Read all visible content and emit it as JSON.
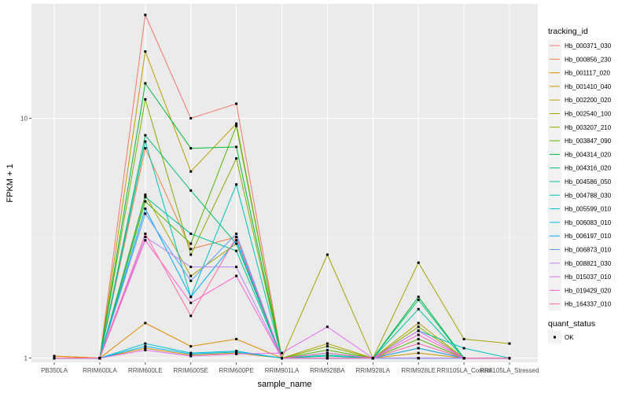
{
  "chart_data": {
    "type": "line",
    "title": "",
    "xlabel": "sample_name",
    "ylabel": "FPKM + 1",
    "y_scale": "log10",
    "ylim": [
      0.96,
      30
    ],
    "y_ticks": [
      1,
      10
    ],
    "y_tick_labels": [
      "1",
      "10"
    ],
    "grid": true,
    "legend_position": "right",
    "categories": [
      "PB350LA",
      "RRIM600LA",
      "RRIM600LE",
      "RRIM600SE",
      "RRIM600PE",
      "RRIM901LA",
      "RRIM928BA",
      "RRIM928LA",
      "RRIM928LE",
      "RRII105LA_Control",
      "RRII105LA_Stressed"
    ],
    "series": [
      {
        "name": "Hb_000371_030",
        "color": "#F8766D",
        "values": [
          1.02,
          1.0,
          27.0,
          10.0,
          11.5,
          1.0,
          1.0,
          1.0,
          1.0,
          1.0,
          1.0
        ]
      },
      {
        "name": "Hb_000856_230",
        "color": "#EE8043",
        "values": [
          1.02,
          1.0,
          7.5,
          2.85,
          3.2,
          1.0,
          1.0,
          1.0,
          1.0,
          1.0,
          1.0
        ]
      },
      {
        "name": "Hb_001117_020",
        "color": "#E18A00",
        "values": [
          1.02,
          1.0,
          1.4,
          1.12,
          1.2,
          1.0,
          1.0,
          1.0,
          1.1,
          1.0,
          1.0
        ]
      },
      {
        "name": "Hb_001410_040",
        "color": "#CF9400",
        "values": [
          1.0,
          1.0,
          1.1,
          1.03,
          1.05,
          1.0,
          1.0,
          1.0,
          1.05,
          1.0,
          1.0
        ]
      },
      {
        "name": "Hb_002200_020",
        "color": "#BA9E00",
        "values": [
          1.0,
          1.0,
          19.0,
          6.0,
          9.5,
          1.0,
          1.15,
          1.0,
          1.4,
          1.0,
          1.0
        ]
      },
      {
        "name": "Hb_002540_100",
        "color": "#A3A500",
        "values": [
          1.0,
          1.0,
          4.8,
          2.2,
          3.0,
          1.0,
          2.7,
          1.0,
          2.5,
          1.2,
          1.15
        ]
      },
      {
        "name": "Hb_003207_210",
        "color": "#83AD00",
        "values": [
          1.0,
          1.0,
          12.0,
          2.7,
          6.8,
          1.0,
          1.12,
          1.0,
          1.35,
          1.0,
          1.0
        ]
      },
      {
        "name": "Hb_003847_090",
        "color": "#52B500",
        "values": [
          1.0,
          1.0,
          4.5,
          3.0,
          9.3,
          1.0,
          1.08,
          1.0,
          1.2,
          1.0,
          1.0
        ]
      },
      {
        "name": "Hb_004314_020",
        "color": "#00BA38",
        "values": [
          1.0,
          1.0,
          14.0,
          7.5,
          7.6,
          1.0,
          1.05,
          1.0,
          1.8,
          1.0,
          1.0
        ]
      },
      {
        "name": "Hb_004316_020",
        "color": "#00BE70",
        "values": [
          1.0,
          1.0,
          8.5,
          5.0,
          3.0,
          1.0,
          1.05,
          1.0,
          1.75,
          1.0,
          1.0
        ]
      },
      {
        "name": "Hb_004586_050",
        "color": "#00C097",
        "values": [
          1.0,
          1.0,
          4.7,
          3.3,
          2.8,
          1.0,
          1.03,
          1.0,
          1.6,
          1.0,
          1.0
        ]
      },
      {
        "name": "Hb_004788_030",
        "color": "#00C1B9",
        "values": [
          1.0,
          1.0,
          8.0,
          1.8,
          5.3,
          1.0,
          1.02,
          1.0,
          1.3,
          1.1,
          1.0
        ]
      },
      {
        "name": "Hb_005599_010",
        "color": "#00BFD6",
        "values": [
          1.0,
          1.0,
          1.15,
          1.05,
          1.07,
          1.0,
          1.0,
          1.0,
          1.0,
          1.0,
          1.0
        ]
      },
      {
        "name": "Hb_006083_010",
        "color": "#00B9EF",
        "values": [
          1.0,
          1.0,
          1.12,
          1.04,
          1.06,
          1.0,
          1.0,
          1.0,
          1.0,
          1.0,
          1.0
        ]
      },
      {
        "name": "Hb_006197_010",
        "color": "#00A9FF",
        "values": [
          1.0,
          1.0,
          4.2,
          1.8,
          3.1,
          1.0,
          1.0,
          1.0,
          1.1,
          1.0,
          1.0
        ]
      },
      {
        "name": "Hb_006873_010",
        "color": "#619CFF",
        "values": [
          1.0,
          1.0,
          4.0,
          2.1,
          3.3,
          1.0,
          1.0,
          1.0,
          1.0,
          1.0,
          1.0
        ]
      },
      {
        "name": "Hb_008821_030",
        "color": "#B983FF",
        "values": [
          1.0,
          1.0,
          3.2,
          2.4,
          2.4,
          1.0,
          1.0,
          1.0,
          1.0,
          1.0,
          1.0
        ]
      },
      {
        "name": "Hb_015037_010",
        "color": "#E76BF3",
        "values": [
          1.0,
          1.0,
          1.08,
          1.02,
          1.04,
          1.05,
          1.35,
          1.0,
          1.3,
          1.0,
          1.0
        ]
      },
      {
        "name": "Hb_019429_020",
        "color": "#FD61D1",
        "values": [
          1.0,
          1.0,
          3.1,
          1.7,
          2.2,
          1.0,
          1.05,
          1.0,
          1.25,
          1.0,
          1.0
        ]
      },
      {
        "name": "Hb_164337_010",
        "color": "#FF67A4",
        "values": [
          1.0,
          1.0,
          3.3,
          1.5,
          3.2,
          1.0,
          1.0,
          1.0,
          1.15,
          1.0,
          1.0
        ]
      }
    ],
    "legend_title": "tracking_id",
    "shape_legend_title": "quant_status",
    "shape_legend_items": [
      "OK"
    ]
  }
}
